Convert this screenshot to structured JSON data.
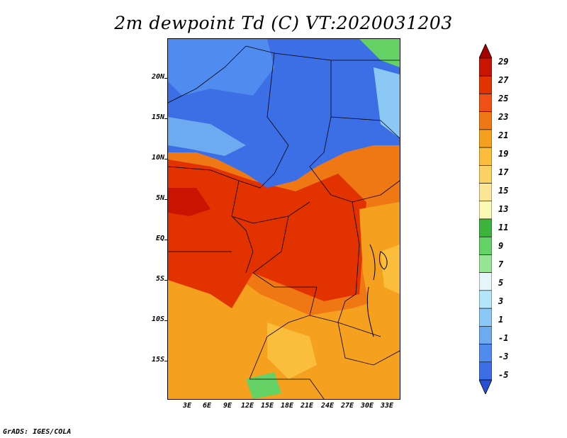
{
  "title": "2m dewpoint Td (C) VT:2020031203",
  "variable": "2m dewpoint",
  "units": "C",
  "valid_time": "2020031203",
  "map": {
    "region": "Central and Western Africa",
    "lat_ticks": [
      "20N",
      "15N",
      "10N",
      "5N",
      "EQ",
      "5S",
      "10S",
      "15S"
    ],
    "lon_ticks": [
      "3E",
      "6E",
      "9E",
      "12E",
      "15E",
      "18E",
      "21E",
      "24E",
      "27E",
      "30E",
      "33E"
    ]
  },
  "colorbar": {
    "labels": [
      "29",
      "27",
      "25",
      "23",
      "21",
      "19",
      "17",
      "15",
      "13",
      "11",
      "9",
      "7",
      "5",
      "3",
      "1",
      "-1",
      "-3",
      "-5"
    ],
    "colors": [
      "#a50000",
      "#c81400",
      "#e13200",
      "#f05014",
      "#f07814",
      "#f5a01e",
      "#fabe3c",
      "#fad264",
      "#fae696",
      "#fafab4",
      "#3cb43c",
      "#64d264",
      "#96e696",
      "#e6f5fa",
      "#b4e6fa",
      "#8cc8f5",
      "#6eaaf0",
      "#508cf0",
      "#3c6ee6",
      "#2850d2"
    ]
  },
  "footer": "GrADS: IGES/COLA"
}
